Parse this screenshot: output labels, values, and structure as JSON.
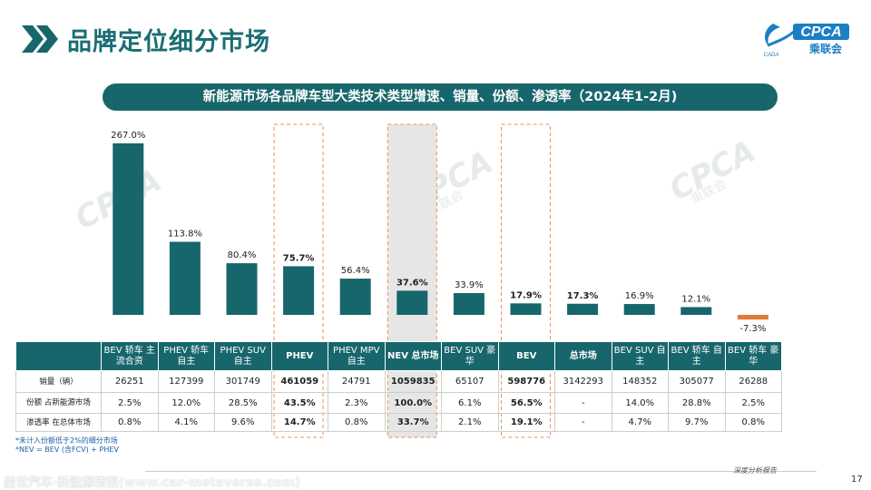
{
  "header": {
    "title": "品牌定位细分市场",
    "logo_text": "CPCA",
    "logo_sub": "乘联会",
    "logo_small": "CADA"
  },
  "subtitle": "新能源市场各品牌车型大类技术类型增速、销量、份额、渗透率（2024年1-2月)",
  "colors": {
    "bar": "#17666c",
    "negative_bar": "#e07b39",
    "highlight_border": "#e8925a",
    "highlight_fill": "#e6e6e6"
  },
  "chart_data": {
    "type": "bar",
    "categories": [
      "BEV 轿车 主流合资",
      "PHEV 轿车 自主",
      "PHEV SUV 自主",
      "PHEV",
      "PHEV MPV 自主",
      "NEV 总市场",
      "BEV SUV 豪华",
      "BEV",
      "总市场",
      "BEV SUV 自主",
      "BEV 轿车 自主",
      "BEV 轿车 豪华"
    ],
    "values": [
      267.0,
      113.8,
      80.4,
      75.7,
      56.4,
      37.6,
      33.9,
      17.9,
      17.3,
      16.9,
      12.1,
      -7.3
    ],
    "data_labels": [
      "267.0%",
      "113.8%",
      "80.4%",
      "75.7%",
      "56.4%",
      "37.6%",
      "33.9%",
      "17.9%",
      "17.3%",
      "16.9%",
      "12.1%",
      "-7.3%"
    ],
    "bold_labels": [
      false,
      false,
      false,
      true,
      false,
      true,
      false,
      true,
      true,
      false,
      false,
      false
    ],
    "highlighted": [
      false,
      false,
      false,
      true,
      false,
      true,
      false,
      true,
      false,
      false,
      false,
      false
    ],
    "shaded": [
      false,
      false,
      false,
      false,
      false,
      true,
      false,
      false,
      false,
      false,
      false,
      false
    ],
    "unit": "%"
  },
  "watermark": {
    "text": "CPCA",
    "sub": "乘联会"
  },
  "table": {
    "columns": [
      {
        "label": "BEV 轿车 主流合资",
        "bold": false
      },
      {
        "label": "PHEV 轿车 自主",
        "bold": false
      },
      {
        "label": "PHEV SUV 自主",
        "bold": false
      },
      {
        "label": "PHEV",
        "bold": true
      },
      {
        "label": "PHEV MPV 自主",
        "bold": false
      },
      {
        "label": "NEV 总市场",
        "bold": true
      },
      {
        "label": "BEV SUV 豪华",
        "bold": false
      },
      {
        "label": "BEV",
        "bold": true
      },
      {
        "label": "总市场",
        "bold": true
      },
      {
        "label": "BEV SUV 自主",
        "bold": false
      },
      {
        "label": "BEV 轿车 自主",
        "bold": false
      },
      {
        "label": "BEV 轿车 豪华",
        "bold": false
      }
    ],
    "rows": [
      {
        "label": "销量（辆）",
        "cls": "r-sales",
        "cells": [
          "26251",
          "127399",
          "301749",
          "461059",
          "24791",
          "1059835",
          "65107",
          "598776",
          "3142293",
          "148352",
          "305077",
          "26288"
        ]
      },
      {
        "label": "份额 占新能源市场",
        "cls": "r-share",
        "cells": [
          "2.5%",
          "12.0%",
          "28.5%",
          "43.5%",
          "2.3%",
          "100.0%",
          "6.1%",
          "56.5%",
          "-",
          "14.0%",
          "28.8%",
          "2.5%"
        ]
      },
      {
        "label": "渗透率 在总体市场",
        "cls": "r-pen",
        "cells": [
          "0.8%",
          "4.1%",
          "9.6%",
          "14.7%",
          "0.8%",
          "33.7%",
          "2.1%",
          "19.1%",
          "-",
          "4.7%",
          "9.7%",
          "0.8%"
        ]
      }
    ],
    "bold_columns": [
      3,
      5,
      7
    ]
  },
  "notes": [
    "*未计入份额低于2%的细分市场",
    "*NEV = BEV (含FCV) + PHEV"
  ],
  "footer": {
    "left": "盖世汽车·新能源情报(www.car-metaverse.com)",
    "mid": "深度分析报告",
    "page": "17"
  }
}
